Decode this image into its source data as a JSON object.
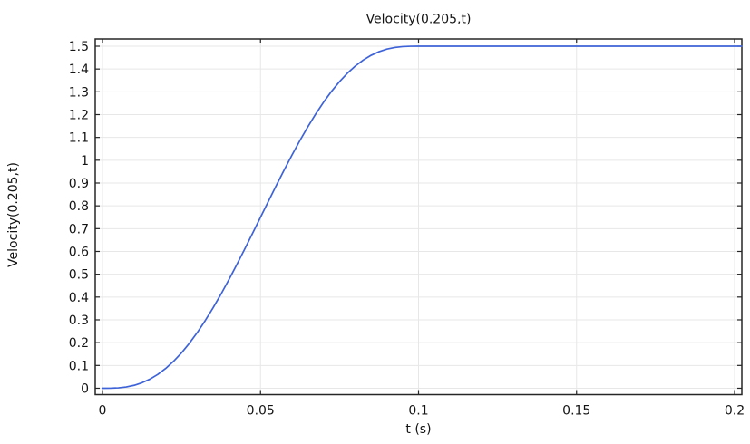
{
  "colors": {
    "curve": "#3E63D8",
    "grid": "#E7E7E7",
    "axis": "#262626",
    "text": "#141414",
    "background": "#FFFFFF"
  },
  "chart_data": {
    "type": "line",
    "title": "Velocity(0.205,t)",
    "xlabel": "t (s)",
    "ylabel": "Velocity(0.205,t)",
    "x_range": [
      -0.0023,
      0.2023
    ],
    "y_range": [
      -0.0279,
      1.5318
    ],
    "grid": true,
    "legend": "none",
    "frame": "box-with-inward-ticks",
    "x_ticks": {
      "values": [
        0,
        0.05,
        0.1,
        0.15,
        0.2
      ],
      "labels": [
        "0",
        "0.05",
        "0.1",
        "0.15",
        "0.2"
      ]
    },
    "y_ticks": {
      "values": [
        0,
        0.1,
        0.2,
        0.3,
        0.4,
        0.5,
        0.6,
        0.7,
        0.8,
        0.9,
        1.0,
        1.1,
        1.2,
        1.3,
        1.4,
        1.5
      ],
      "labels": [
        "0",
        "0.1",
        "0.2",
        "0.3",
        "0.4",
        "0.5",
        "0.6",
        "0.7",
        "0.8",
        "0.9",
        "1",
        "1.1",
        "1.2",
        "1.3",
        "1.4",
        "1.5"
      ]
    },
    "series": [
      {
        "name": "Velocity(0.205,t)",
        "color": "#3E63D8",
        "description": "smoothed step from 0 to 1.5 over t in [0, 0.1], constant 1.5 afterwards",
        "x": [
          0,
          0.0025,
          0.005,
          0.0075,
          0.01,
          0.0125,
          0.015,
          0.0175,
          0.02,
          0.0225,
          0.025,
          0.0275,
          0.03,
          0.0325,
          0.035,
          0.0375,
          0.04,
          0.0425,
          0.045,
          0.0475,
          0.05,
          0.0525,
          0.055,
          0.0575,
          0.06,
          0.0625,
          0.065,
          0.0675,
          0.07,
          0.0725,
          0.075,
          0.0775,
          0.08,
          0.0825,
          0.085,
          0.0875,
          0.09,
          0.0925,
          0.095,
          0.0975,
          0.1,
          0.125,
          0.15,
          0.175,
          0.2
        ],
        "y": [
          0,
          0.0002,
          0.0017,
          0.0056,
          0.0128,
          0.0241,
          0.0399,
          0.0608,
          0.0869,
          0.1184,
          0.1553,
          0.1974,
          0.2446,
          0.2965,
          0.3528,
          0.4128,
          0.4762,
          0.5422,
          0.6103,
          0.6798,
          0.75,
          0.8202,
          0.8897,
          0.9578,
          1.0238,
          1.0872,
          1.1472,
          1.2035,
          1.2554,
          1.3026,
          1.3447,
          1.3816,
          1.4131,
          1.4392,
          1.4601,
          1.4759,
          1.4872,
          1.4944,
          1.4983,
          1.4998,
          1.5,
          1.5,
          1.5,
          1.5,
          1.5
        ]
      }
    ]
  }
}
